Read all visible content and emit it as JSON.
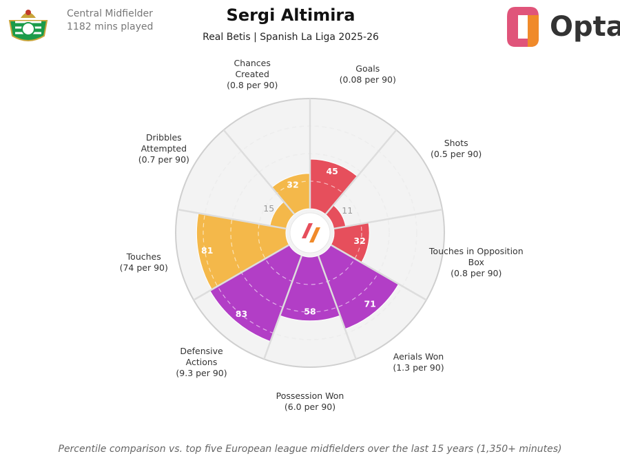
{
  "chart_data": {
    "type": "pizza",
    "title": "Sergi Altimira",
    "subtitle": "Real Betis | Spanish La Liga 2025-26",
    "position": "Central Midfielder",
    "minutes": "1182 mins played",
    "brand": "Opta",
    "note": "Percentile comparison vs. top five European league midfielders over the last 15 years (1,350+ minutes)",
    "categories": [
      "Goals",
      "Shots",
      "Touches in Opposition Box",
      "Aerials Won",
      "Possession Won",
      "Defensive Actions",
      "Touches",
      "Dribbles Attempted",
      "Chances Created"
    ],
    "sublabels": [
      "(0.08 per 90)",
      "(0.5 per 90)",
      "(0.8 per 90)",
      "(1.3 per 90)",
      "(6.0 per 90)",
      "(9.3 per 90)",
      "(74 per 90)",
      "(0.7 per 90)",
      "(0.8 per 90)"
    ],
    "values": [
      45,
      11,
      32,
      71,
      58,
      83,
      81,
      15,
      32
    ],
    "colors": [
      "#e64f5c",
      "#e64f5c",
      "#e64f5c",
      "#b23ec6",
      "#b23ec6",
      "#b23ec6",
      "#f4b84a",
      "#f4b84a",
      "#f4b84a"
    ],
    "rlim": [
      0,
      100
    ],
    "rticks": [
      25,
      50,
      75
    ]
  }
}
